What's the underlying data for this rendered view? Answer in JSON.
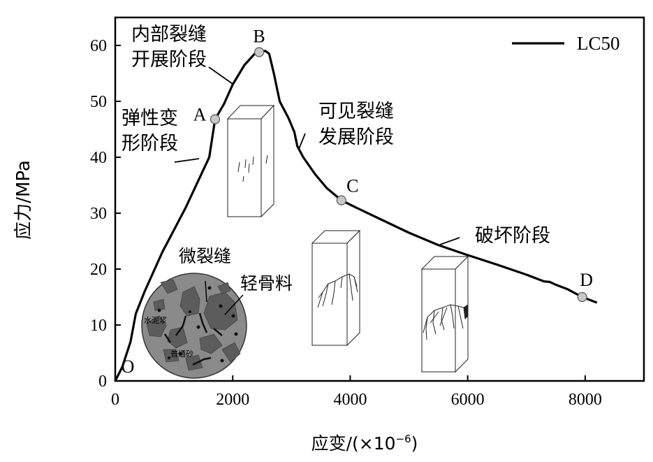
{
  "chart_data": {
    "type": "line",
    "xlabel": "应变/(×10",
    "xlabel_exp": "−6",
    "xlabel_close": ")",
    "ylabel": "应力/MPa",
    "xlim": [
      0,
      9000
    ],
    "ylim": [
      0,
      65
    ],
    "xticks": [
      0,
      2000,
      4000,
      6000,
      8000
    ],
    "yticks": [
      0,
      10,
      20,
      30,
      40,
      50,
      60
    ],
    "grid": false,
    "legend_position": "top-right",
    "series": [
      {
        "name": "LC50",
        "color": "#000000",
        "points": [
          [
            0,
            0
          ],
          [
            120,
            2.5
          ],
          [
            260,
            7
          ],
          [
            350,
            12
          ],
          [
            500,
            16
          ],
          [
            800,
            23
          ],
          [
            1200,
            31
          ],
          [
            1600,
            40
          ],
          [
            1700,
            46.8
          ],
          [
            1850,
            49.5
          ],
          [
            2000,
            53
          ],
          [
            2200,
            56.5
          ],
          [
            2400,
            58.8
          ],
          [
            2480,
            59
          ],
          [
            2560,
            59
          ],
          [
            2620,
            58.5
          ],
          [
            2650,
            57.2
          ],
          [
            2700,
            55
          ],
          [
            2800,
            50
          ],
          [
            2950,
            47
          ],
          [
            3050,
            44.5
          ],
          [
            3100,
            42
          ],
          [
            3200,
            40
          ],
          [
            3400,
            37
          ],
          [
            3600,
            34.5
          ],
          [
            3850,
            32.3
          ],
          [
            4100,
            31
          ],
          [
            4500,
            29
          ],
          [
            5000,
            26.5
          ],
          [
            5500,
            24.3
          ],
          [
            6000,
            22.5
          ],
          [
            6500,
            20.8
          ],
          [
            7000,
            19
          ],
          [
            7300,
            17.8
          ],
          [
            7400,
            17.7
          ],
          [
            7500,
            17.2
          ],
          [
            7700,
            16.4
          ],
          [
            7950,
            15
          ],
          [
            8200,
            14
          ]
        ]
      }
    ],
    "markers": [
      {
        "label": "O",
        "x": 0,
        "y": 0,
        "dot": false,
        "dx": 18,
        "dy": -12
      },
      {
        "label": "A",
        "x": 1700,
        "y": 46.8,
        "dot": true,
        "dx": -22,
        "dy": 2
      },
      {
        "label": "B",
        "x": 2450,
        "y": 58.8,
        "dot": true,
        "dx": 0,
        "dy": -14
      },
      {
        "label": "C",
        "x": 3850,
        "y": 32.3,
        "dot": true,
        "dx": 16,
        "dy": -12
      },
      {
        "label": "D",
        "x": 7950,
        "y": 15,
        "dot": true,
        "dx": 6,
        "dy": -16
      }
    ],
    "stage_annotations": [
      {
        "lines": [
          "内部裂缝",
          "开展阶段"
        ]
      },
      {
        "lines": [
          "弹性变",
          "形阶段"
        ]
      },
      {
        "lines": [
          "可见裂缝",
          "发展阶段"
        ]
      },
      {
        "lines": [
          "破坏阶段"
        ]
      }
    ],
    "inset_labels": {
      "micro_crack": "微裂缝",
      "light_aggregate": "轻骨料",
      "cement_paste": "水泥浆",
      "normal_sand": "普通砂"
    }
  }
}
